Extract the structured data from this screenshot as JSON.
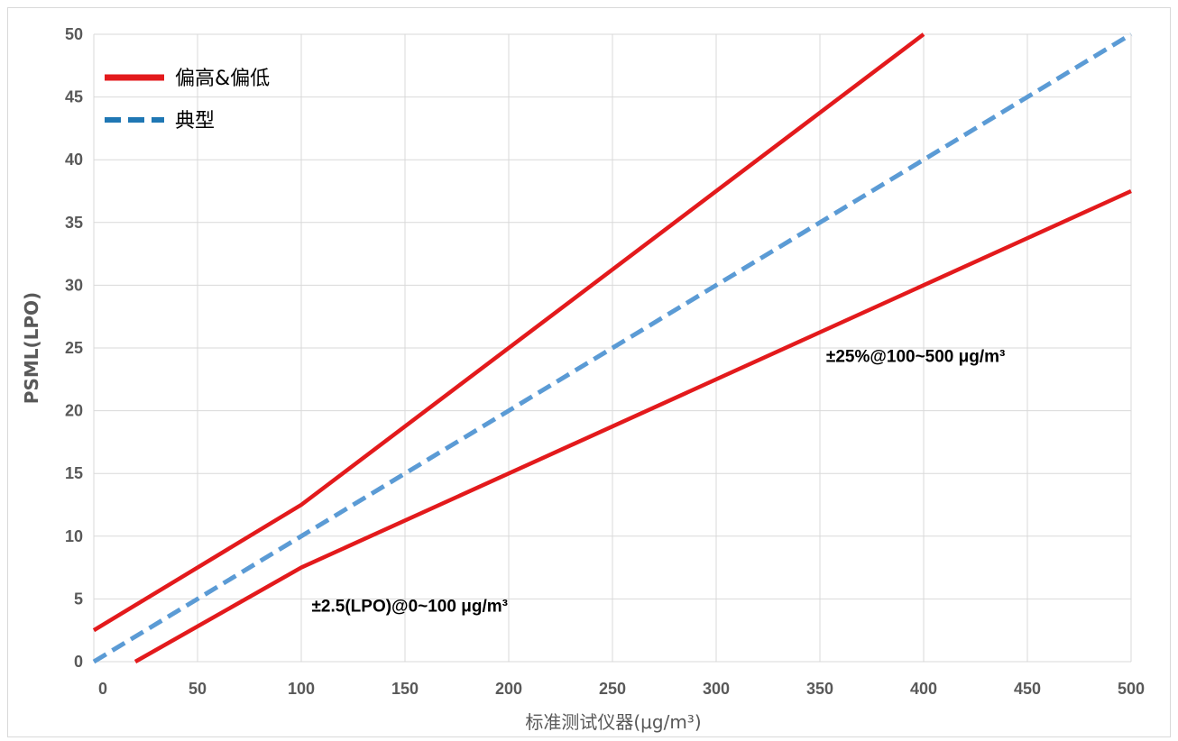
{
  "chart_data": {
    "type": "line",
    "title": "",
    "xlabel": "标准测试仪器(μg/m³)",
    "ylabel": "PSML(LPO)",
    "xlim": [
      0,
      500
    ],
    "ylim": [
      0,
      50
    ],
    "x_ticks": [
      0,
      50,
      100,
      150,
      200,
      250,
      300,
      350,
      400,
      450,
      500
    ],
    "y_ticks": [
      0,
      5,
      10,
      15,
      20,
      25,
      30,
      35,
      40,
      45,
      50
    ],
    "grid": true,
    "legend_position": "top-left",
    "series": [
      {
        "name": "偏高&偏低",
        "style": "solid",
        "color": "#e31a1c",
        "segments": [
          {
            "x": [
              0,
              100,
              400
            ],
            "y": [
              2.5,
              12.5,
              50
            ]
          },
          {
            "x": [
              20,
              100,
              500
            ],
            "y": [
              0,
              7.5,
              37.5
            ]
          }
        ]
      },
      {
        "name": "典型",
        "style": "dashed",
        "color": "#5b9bd5",
        "legend_color": "#1f77b4",
        "segments": [
          {
            "x": [
              0,
              500
            ],
            "y": [
              0,
              50
            ]
          }
        ]
      }
    ],
    "annotations": [
      {
        "text": "±25%@100~500  μg/m³",
        "x": 353,
        "y": 23.9
      },
      {
        "text": "±2.5(LPO)@0~100 μg/m³",
        "x": 105,
        "y": 4.0
      }
    ]
  }
}
